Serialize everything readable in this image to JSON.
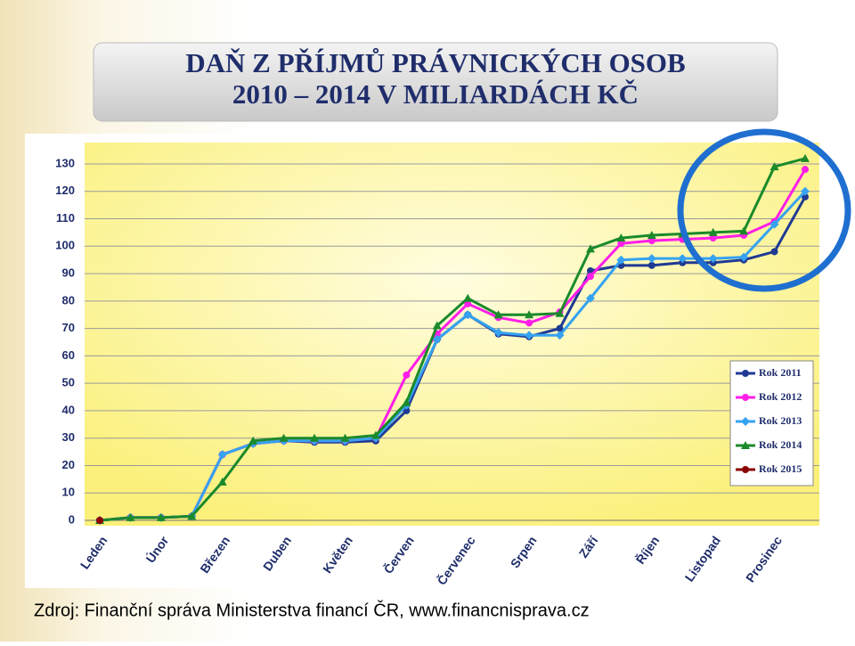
{
  "chart_data": {
    "type": "line",
    "title": "DAŇ Z PŘÍJMŮ PRÁVNICKÝCH OSOB",
    "subtitle": "2010 – 2014 V MILIARDÁCH KČ",
    "source": "Zdroj: Finanční správa Ministerstva financí ČR, www.financnisprava.cz",
    "categories": [
      "Leden",
      null,
      "Únor",
      null,
      "Březen",
      null,
      "Duben",
      null,
      "Květen",
      null,
      "Červen",
      null,
      "Červenec",
      null,
      "Srpen",
      null,
      "Září",
      null,
      "Říjen",
      null,
      "Listopad",
      null,
      "Prosinec",
      null
    ],
    "series": [
      {
        "name": "Rok 2011",
        "color": "#1f3a93",
        "marker": "circle",
        "values": [
          0,
          1,
          1,
          1.5,
          24,
          28,
          29,
          28.5,
          28.5,
          29,
          40,
          66,
          75,
          68,
          67,
          70,
          91,
          93,
          93,
          94,
          94,
          95,
          98,
          118
        ]
      },
      {
        "name": "Rok 2012",
        "color": "#ff1ee8",
        "marker": "circle",
        "values": [
          0,
          1,
          1,
          1.5,
          24,
          28,
          29,
          29,
          29,
          30,
          53,
          68,
          79,
          74,
          72,
          76,
          89,
          101,
          102,
          102.5,
          103,
          104,
          109,
          128
        ]
      },
      {
        "name": "Rok 2013",
        "color": "#36a2f0",
        "marker": "diamond",
        "values": [
          0,
          1,
          1,
          1.5,
          24,
          28,
          29,
          29,
          29,
          30,
          42,
          66,
          75,
          68.5,
          67.5,
          67.5,
          81,
          95,
          95.5,
          95.5,
          95.5,
          96,
          108,
          120
        ]
      },
      {
        "name": "Rok 2014",
        "color": "#1a8a2a",
        "marker": "triangle",
        "values": [
          0,
          1,
          1,
          1.5,
          14,
          29,
          30,
          30,
          30,
          31,
          43,
          71,
          81,
          75,
          75,
          75.5,
          99,
          103,
          104,
          104.5,
          105,
          105.5,
          129,
          132
        ]
      },
      {
        "name": "Rok 2015",
        "color": "#8b0000",
        "marker": "circle",
        "values": [
          0,
          null,
          null,
          null,
          null,
          null,
          null,
          null,
          null,
          null,
          null,
          null,
          null,
          null,
          null,
          null,
          null,
          null,
          null,
          null,
          null,
          null,
          null,
          null
        ]
      }
    ],
    "ylim": [
      0,
      130
    ],
    "yticks": [
      0,
      10,
      20,
      30,
      40,
      50,
      60,
      70,
      80,
      90,
      100,
      110,
      120,
      130
    ],
    "grid": true,
    "legend": "lower right"
  }
}
